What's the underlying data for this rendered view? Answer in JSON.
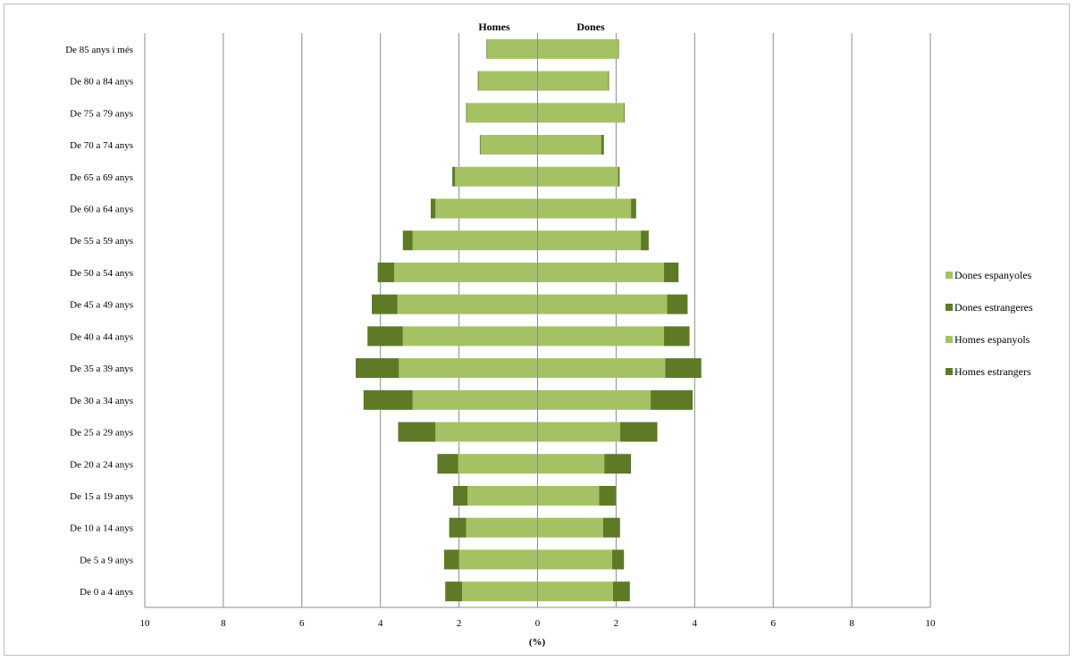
{
  "chart_data": {
    "type": "bar",
    "subtype": "population-pyramid",
    "header_left": "Homes",
    "header_right": "Dones",
    "xlabel": "(%)",
    "xlim": [
      -10,
      10
    ],
    "x_ticks": [
      "10",
      "8",
      "6",
      "4",
      "2",
      "0",
      "2",
      "4",
      "6",
      "8",
      "10"
    ],
    "grid": true,
    "legend_position": "right",
    "categories": [
      "De 85 anys i més",
      "De 80 a 84 anys",
      "De 75 a 79 anys",
      "De 70 a 74 anys",
      "De 65 a 69 anys",
      "De 60 a 64 anys",
      "De 55 a 59 anys",
      "De 50 a 54 anys",
      "De 45 a 49 anys",
      "De 40 a 44 anys",
      "De 35 a 39 anys",
      "De 30 a 34 anys",
      "De 25 a 29 anys",
      "De 20 a 24 anys",
      "De 15 a 19 anys",
      "De 10 a 14 anys",
      "De 5 a 9 anys",
      "De 0 a 4 anys"
    ],
    "series": [
      {
        "name": "Dones espanyoles",
        "side": "right",
        "color": "#a4c264",
        "values": [
          2.05,
          1.8,
          2.2,
          1.62,
          2.05,
          2.38,
          2.63,
          3.22,
          3.3,
          3.22,
          3.25,
          2.88,
          2.1,
          1.7,
          1.57,
          1.67,
          1.9,
          1.92
        ]
      },
      {
        "name": "Dones estrangeres",
        "side": "right",
        "color": "#5e7a27",
        "values": [
          0.02,
          0.02,
          0.02,
          0.07,
          0.04,
          0.13,
          0.2,
          0.37,
          0.52,
          0.65,
          0.92,
          1.07,
          0.95,
          0.68,
          0.42,
          0.43,
          0.3,
          0.43
        ]
      },
      {
        "name": "Homes espanyols",
        "side": "left",
        "color": "#a4c264",
        "values": [
          1.28,
          1.5,
          1.8,
          1.45,
          2.1,
          2.6,
          3.18,
          3.65,
          3.57,
          3.43,
          3.53,
          3.18,
          2.6,
          2.02,
          1.78,
          1.82,
          2.0,
          1.92
        ]
      },
      {
        "name": "Homes estrangers",
        "side": "left",
        "color": "#5e7a27",
        "values": [
          0.02,
          0.02,
          0.02,
          0.02,
          0.07,
          0.12,
          0.25,
          0.42,
          0.65,
          0.9,
          1.1,
          1.25,
          0.95,
          0.53,
          0.37,
          0.43,
          0.38,
          0.43
        ]
      }
    ],
    "legend": [
      "Dones espanyoles",
      "Dones estrangeres",
      "Homes espanyols",
      "Homes estrangers"
    ]
  }
}
